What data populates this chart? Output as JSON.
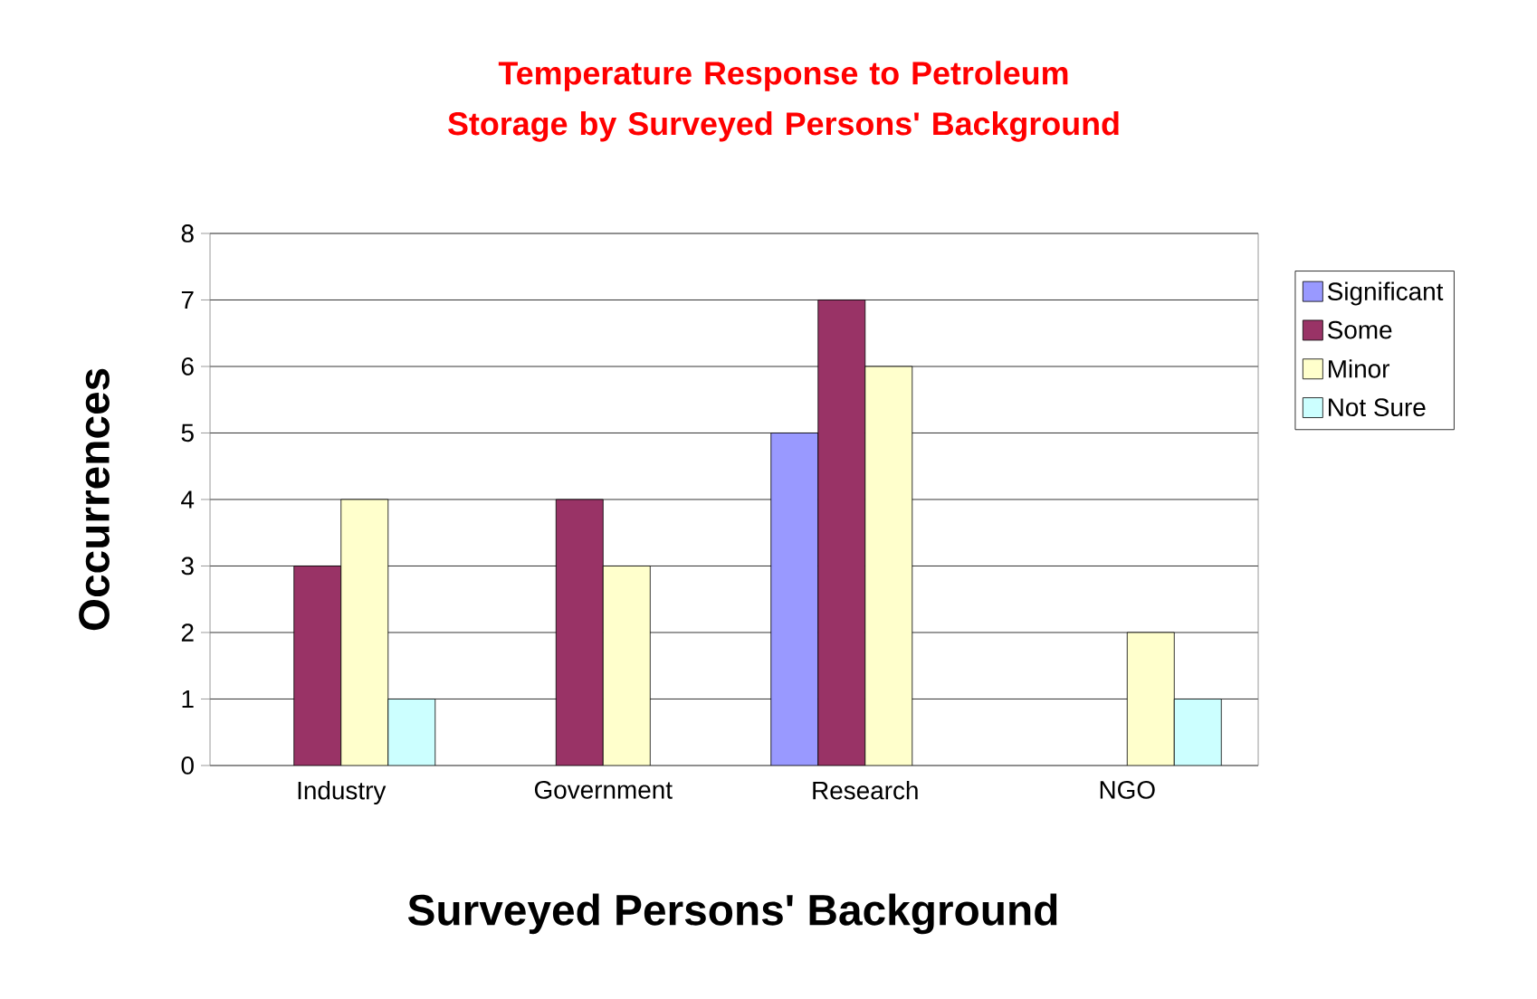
{
  "chart_data": {
    "type": "bar",
    "title": "Temperature Response to Petroleum Storage by Surveyed Persons' Background",
    "xlabel": "Surveyed Persons' Background",
    "ylabel": "Occurrences",
    "categories": [
      "Industry",
      "Government",
      "Research",
      "NGO"
    ],
    "series": [
      {
        "name": "Significant",
        "color": "#9999ff",
        "values": [
          null,
          null,
          5,
          null
        ]
      },
      {
        "name": "Some",
        "color": "#993366",
        "values": [
          3,
          4,
          7,
          null
        ]
      },
      {
        "name": "Minor",
        "color": "#ffffcc",
        "values": [
          4,
          3,
          6,
          2
        ]
      },
      {
        "name": "Not Sure",
        "color": "#ccffff",
        "values": [
          1,
          null,
          null,
          1
        ]
      }
    ],
    "ylim": [
      0,
      8
    ],
    "yticks": [
      0,
      1,
      2,
      3,
      4,
      5,
      6,
      7,
      8
    ],
    "grid": "y",
    "legend": "right"
  }
}
